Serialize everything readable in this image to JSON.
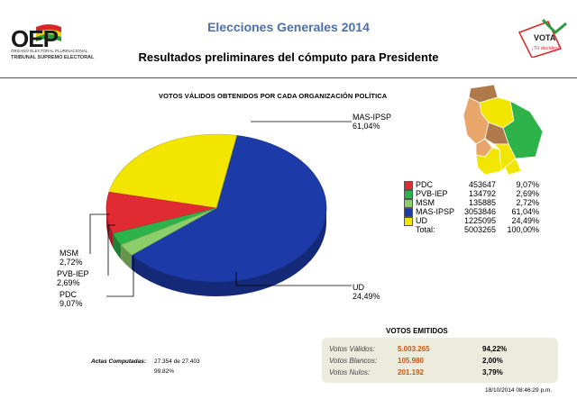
{
  "header": {
    "logo_text": "OEP",
    "logo_org": "ÓRGANO ELECTORAL PLURINACIONAL",
    "logo_tribunal": "TRIBUNAL SUPREMO ELECTORAL",
    "title": "Elecciones Generales  2014",
    "subtitle": "Resultados preliminares del cómputo para  Presidente",
    "vota_logo_text": "VOTA",
    "vota_tagline": "¡Tú decides!"
  },
  "chart_data": {
    "type": "pie",
    "title": "VOTOS VÁLIDOS OBTENIDOS POR CADA ORGANIZACIÓN POLÍTICA",
    "slices": [
      {
        "name": "MAS-IPSP",
        "value": 61.04,
        "pct_label": "61,04%",
        "color": "#1c3aa8"
      },
      {
        "name": "UD",
        "value": 24.49,
        "pct_label": "24,49%",
        "color": "#f2e500"
      },
      {
        "name": "PDC",
        "value": 9.07,
        "pct_label": "9,07%",
        "color": "#e02b33"
      },
      {
        "name": "PVB-IEP",
        "value": 2.69,
        "pct_label": "2,69%",
        "color": "#2eb24a"
      },
      {
        "name": "MSM",
        "value": 2.72,
        "pct_label": "2,72%",
        "color": "#8ccf6a"
      }
    ]
  },
  "legend": {
    "rows": [
      {
        "name": "PDC",
        "votes": "453647",
        "pct": "9,07%",
        "color": "#e02b33"
      },
      {
        "name": "PVB-IEP",
        "votes": "134792",
        "pct": "2,69%",
        "color": "#2eb24a"
      },
      {
        "name": "MSM",
        "votes": "135885",
        "pct": "2,72%",
        "color": "#8ccf6a"
      },
      {
        "name": "MAS-IPSP",
        "votes": "3053846",
        "pct": "61,04%",
        "color": "#1c3aa8"
      },
      {
        "name": "UD",
        "votes": "1225095",
        "pct": "24,49%",
        "color": "#f2e500"
      }
    ],
    "total_label": "Total:",
    "total_votes": "5003265",
    "total_pct": "100,00%"
  },
  "emitidos": {
    "title": "VOTOS EMITIDOS",
    "rows": [
      {
        "label": "Votos Válidos:",
        "value": "5.003.265",
        "pct": "94,22%"
      },
      {
        "label": "Votos Blancos:",
        "value": "105.980",
        "pct": "2,00%"
      },
      {
        "label": "Votos Nulos:",
        "value": "201.192",
        "pct": "3,79%"
      }
    ]
  },
  "actas": {
    "label": "Actas Computadas:",
    "value": "27.354 de 27.403",
    "pct": "99.82%"
  },
  "timestamp": "18/10/2014 08:46:29 p.m."
}
